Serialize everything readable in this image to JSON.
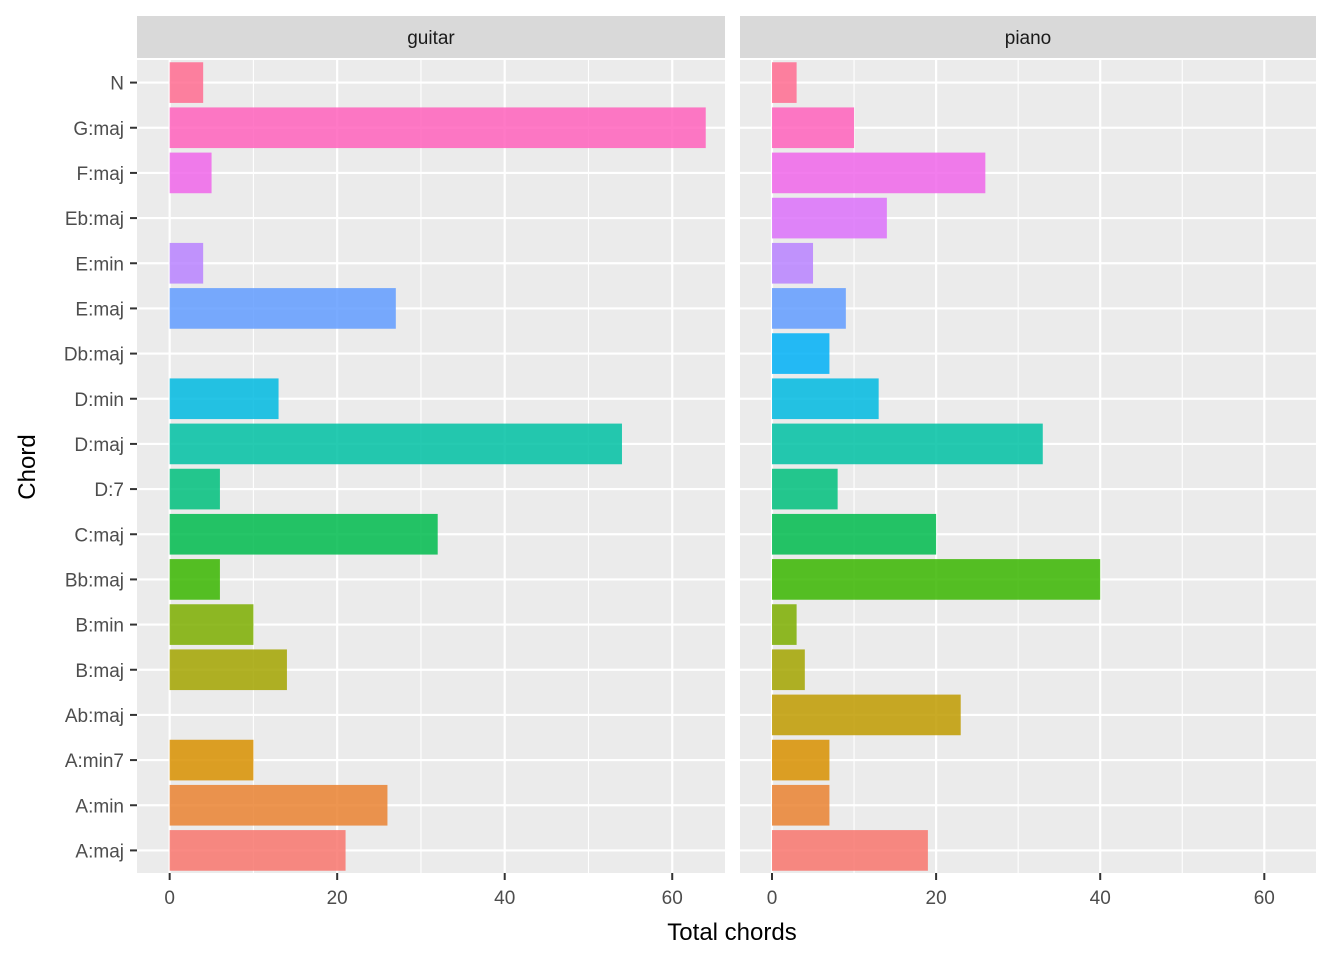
{
  "chart_data": {
    "type": "bar",
    "orientation": "horizontal",
    "xlabel": "Total chords",
    "ylabel": "Chord",
    "xlim": [
      -3.9,
      66.3
    ],
    "x_ticks": [
      0,
      20,
      40,
      60
    ],
    "x_tick_labels": [
      "0",
      "20",
      "40",
      "60"
    ],
    "grid": true,
    "legend": "none",
    "categories": [
      "A:maj",
      "A:min",
      "A:min7",
      "Ab:maj",
      "B:maj",
      "B:min",
      "Bb:maj",
      "C:maj",
      "D:7",
      "D:maj",
      "D:min",
      "Db:maj",
      "E:maj",
      "E:min",
      "Eb:maj",
      "F:maj",
      "G:maj",
      "N"
    ],
    "category_colors": [
      "#F8766D",
      "#EA8331",
      "#D89000",
      "#C09B00",
      "#A3A500",
      "#7CAE00",
      "#39B600",
      "#00BB4E",
      "#00BF7D",
      "#00C1A3",
      "#00BAE0",
      "#00B0F6",
      "#619CFF",
      "#B983FF",
      "#DC71FA",
      "#F066EA",
      "#FF62BC",
      "#FF6C91"
    ],
    "bar_opacity": 0.85,
    "facets": [
      {
        "label": "guitar",
        "values": [
          21,
          26,
          10,
          null,
          14,
          10,
          6,
          32,
          6,
          54,
          13,
          null,
          27,
          4,
          null,
          5,
          64,
          4
        ]
      },
      {
        "label": "piano",
        "values": [
          19,
          7,
          7,
          23,
          4,
          3,
          40,
          20,
          8,
          33,
          13,
          7,
          9,
          5,
          14,
          26,
          10,
          3
        ]
      }
    ]
  }
}
